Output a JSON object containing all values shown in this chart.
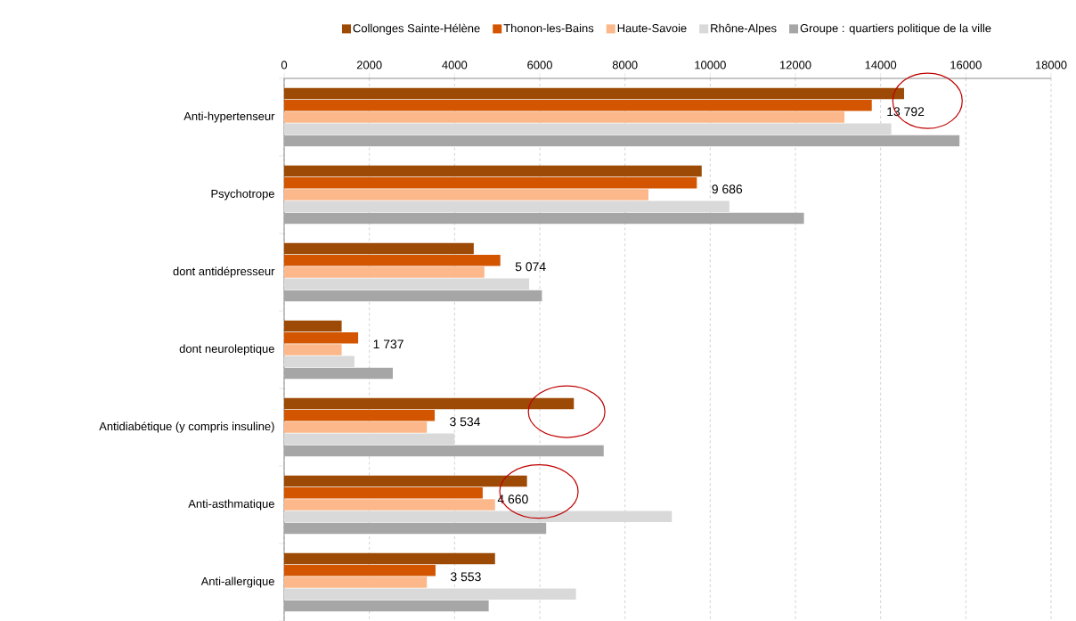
{
  "chart_data": {
    "type": "bar",
    "orientation": "horizontal",
    "categories": [
      "Anti-hypertenseur",
      "Psychotrope",
      "dont antidépresseur",
      "dont neuroleptique",
      "Antidiabétique  (y compris insuline)",
      "Anti-asthmatique",
      "Anti-allergique"
    ],
    "series": [
      {
        "name": "Collonges Sainte-Hélène",
        "color": "#9c4a06",
        "values": [
          14550,
          9800,
          4450,
          1350,
          6800,
          5700,
          4950
        ]
      },
      {
        "name": "Thonon-les-Bains",
        "color": "#d45500",
        "values": [
          13792,
          9686,
          5074,
          1737,
          3534,
          4660,
          3553
        ],
        "value_labels": [
          "13 792",
          "9 686",
          "5 074",
          "1 737",
          "3 534",
          "4 660",
          "3 553"
        ]
      },
      {
        "name": "Haute-Savoie",
        "color": "#fcb88a",
        "values": [
          13150,
          8550,
          4700,
          1350,
          3350,
          4950,
          3350
        ]
      },
      {
        "name": "Rhône-Alpes",
        "color": "#d9d9d9",
        "values": [
          14250,
          10450,
          5750,
          1650,
          4000,
          9100,
          6850
        ]
      },
      {
        "name": "Groupe : quartiers politique de la ville",
        "color": "#a6a6a6",
        "values": [
          15850,
          12200,
          6050,
          2550,
          7500,
          6150,
          4800
        ]
      }
    ],
    "xlim": [
      0,
      18000
    ],
    "xticks": [
      0,
      2000,
      4000,
      6000,
      8000,
      10000,
      12000,
      14000,
      16000,
      18000
    ],
    "grid": "x",
    "legend": "top"
  }
}
